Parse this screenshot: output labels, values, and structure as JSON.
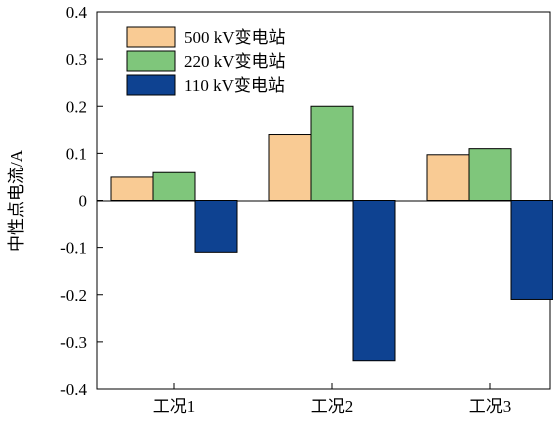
{
  "chart_data": {
    "type": "bar",
    "title": "",
    "xlabel": "",
    "ylabel": "中性点电流/A",
    "categories": [
      "工况1",
      "工况2",
      "工况3"
    ],
    "series": [
      {
        "name": "500 kV变电站",
        "values": [
          0.05,
          0.14,
          0.097
        ],
        "color": "#F9CB94"
      },
      {
        "name": "220 kV变电站",
        "values": [
          0.06,
          0.2,
          0.11
        ],
        "color": "#7FC67B"
      },
      {
        "name": "110 kV变电站",
        "values": [
          -0.11,
          -0.34,
          -0.21
        ],
        "color": "#0E4291"
      }
    ],
    "ylim": [
      -0.4,
      0.4
    ],
    "yticks": [
      "0.4",
      "0.3",
      "0.2",
      "0.1",
      "0",
      "-0.1",
      "-0.2",
      "-0.3",
      "-0.4"
    ],
    "ytick_values": [
      0.4,
      0.3,
      0.2,
      0.1,
      0,
      -0.1,
      -0.2,
      -0.3,
      -0.4
    ],
    "grid": false,
    "legend_position": "top-left"
  }
}
